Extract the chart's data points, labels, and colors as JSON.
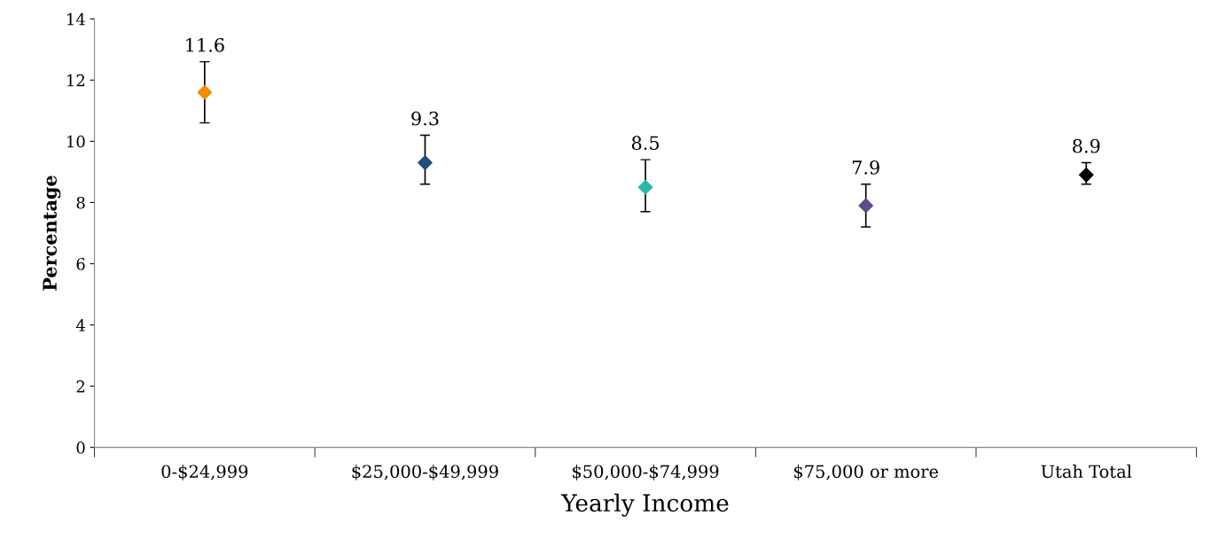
{
  "chart_data": {
    "type": "scatter",
    "xlabel": "Yearly Income",
    "ylabel": "Percentage",
    "categories": [
      "0-$24,999",
      "$25,000-$49,999",
      "$50,000-$74,999",
      "$75,000 or more",
      "Utah Total"
    ],
    "values": [
      11.6,
      9.3,
      8.5,
      7.9,
      8.9
    ],
    "colors": [
      "#f28c00",
      "#1f4e79",
      "#2ab8a8",
      "#5f4b8b",
      "#000000"
    ],
    "errors": [
      [
        10.6,
        12.6
      ],
      [
        8.6,
        10.2
      ],
      [
        7.7,
        9.4
      ],
      [
        7.2,
        8.6
      ],
      [
        8.6,
        9.3
      ]
    ],
    "data_labels": true,
    "marker": "diamond",
    "grid": false,
    "legend": false,
    "ylim": [
      0,
      14
    ],
    "yticks": [
      0,
      2,
      4,
      6,
      8,
      10,
      12,
      14
    ]
  }
}
